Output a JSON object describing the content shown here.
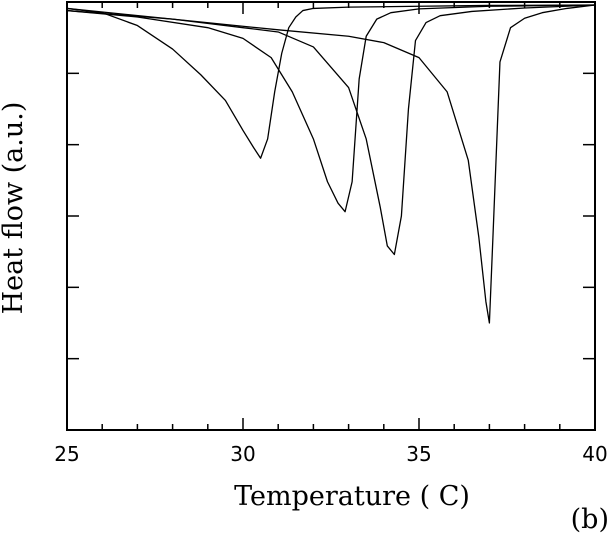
{
  "chart_data": {
    "type": "line",
    "xlabel": "Temperature ( C)",
    "ylabel": "Heat flow (a.u.)",
    "panel_label": "(b)",
    "xlim": [
      25,
      40
    ],
    "ylim": [
      0,
      1
    ],
    "xticks": [
      "25",
      "30",
      "35",
      "40"
    ],
    "grid": false,
    "legend": "none",
    "series": [
      {
        "x": [
          25,
          26,
          27,
          28,
          28.8,
          29.5,
          30,
          30.3,
          30.5,
          30.7,
          30.9,
          31.1,
          31.3,
          31.5,
          31.7,
          32,
          33,
          35,
          37,
          40
        ],
        "y": [
          0.985,
          0.975,
          0.945,
          0.89,
          0.83,
          0.77,
          0.7,
          0.66,
          0.635,
          0.68,
          0.79,
          0.88,
          0.94,
          0.965,
          0.98,
          0.985,
          0.988,
          0.99,
          0.992,
          0.993
        ]
      },
      {
        "x": [
          25,
          27,
          29,
          30,
          30.8,
          31.4,
          32,
          32.4,
          32.7,
          32.9,
          33.1,
          33.3,
          33.5,
          33.8,
          34.2,
          35,
          37,
          40
        ],
        "y": [
          0.98,
          0.965,
          0.94,
          0.915,
          0.87,
          0.79,
          0.68,
          0.58,
          0.53,
          0.51,
          0.58,
          0.82,
          0.92,
          0.96,
          0.975,
          0.984,
          0.99,
          0.993
        ]
      },
      {
        "x": [
          25,
          28,
          30,
          31,
          32,
          33,
          33.5,
          33.9,
          34.1,
          34.3,
          34.5,
          34.7,
          34.9,
          35.2,
          35.6,
          36.5,
          38,
          40
        ],
        "y": [
          0.98,
          0.96,
          0.94,
          0.93,
          0.895,
          0.8,
          0.68,
          0.52,
          0.43,
          0.41,
          0.5,
          0.75,
          0.91,
          0.952,
          0.968,
          0.978,
          0.986,
          0.993
        ]
      },
      {
        "x": [
          25,
          28,
          31,
          33,
          34,
          35,
          35.8,
          36.4,
          36.7,
          36.9,
          37,
          37.1,
          37.3,
          37.6,
          38,
          38.5,
          39.2,
          40
        ],
        "y": [
          0.985,
          0.96,
          0.935,
          0.92,
          0.905,
          0.87,
          0.79,
          0.63,
          0.45,
          0.3,
          0.25,
          0.45,
          0.86,
          0.94,
          0.962,
          0.975,
          0.985,
          0.993
        ]
      }
    ]
  }
}
